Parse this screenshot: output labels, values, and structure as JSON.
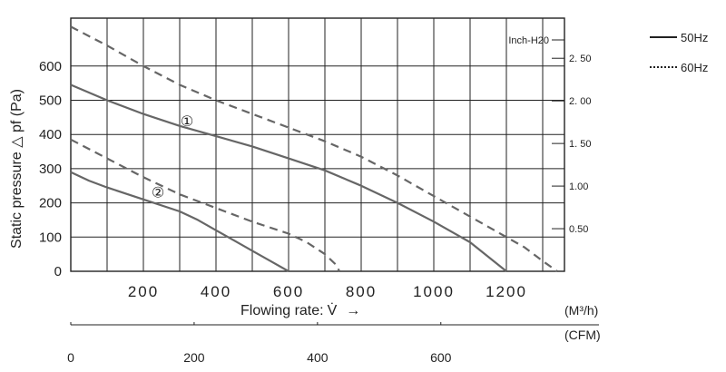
{
  "chart_data": {
    "type": "line",
    "ylabel": "Static pressure △ pf (Pa)",
    "xlabel": "Flowing rate:",
    "xlabel_symbol": "V̇",
    "xlabel_arrow": "→",
    "x_unit": "(M³/h)",
    "x_unit_sup": "3",
    "xlim": [
      0,
      1360
    ],
    "ylim": [
      0,
      740
    ],
    "x_ticks": [
      200,
      400,
      600,
      800,
      1000,
      1200
    ],
    "x_tick_labels": [
      "200",
      "400",
      "600",
      "800",
      "1000",
      "1200"
    ],
    "y_ticks": [
      0,
      100,
      200,
      300,
      400,
      500,
      600
    ],
    "y_tick_labels": [
      "0",
      "100",
      "200",
      "300",
      "400",
      "500",
      "600"
    ],
    "grid": true,
    "secondary_axis": {
      "title": "Inch-H20",
      "ticks": [
        2.5,
        2.0,
        1.5,
        1.0,
        0.5
      ],
      "tick_labels": [
        "2. 50",
        "2. 00",
        "1. 50",
        "1.00",
        "0.50"
      ]
    },
    "cfm_axis": {
      "unit": "(CFM)",
      "ticks": [
        0,
        200,
        400,
        600
      ],
      "tick_labels": [
        "0",
        "200",
        "400",
        "600"
      ]
    },
    "legend": {
      "placement": "outside-top-right",
      "entries": [
        {
          "label": "50Hz",
          "style": "solid"
        },
        {
          "label": "60Hz",
          "style": "dotted"
        }
      ]
    },
    "curve_markers": [
      {
        "label": "①",
        "x": 320,
        "y": 440
      },
      {
        "label": "②",
        "x": 240,
        "y": 232
      }
    ],
    "series": [
      {
        "style": "solid",
        "curve": "1",
        "points": [
          [
            0,
            545
          ],
          [
            100,
            500
          ],
          [
            200,
            460
          ],
          [
            300,
            425
          ],
          [
            400,
            395
          ],
          [
            500,
            365
          ],
          [
            600,
            330
          ],
          [
            700,
            295
          ],
          [
            800,
            250
          ],
          [
            900,
            200
          ],
          [
            1000,
            145
          ],
          [
            1100,
            85
          ],
          [
            1200,
            0
          ]
        ]
      },
      {
        "style": "dashed",
        "curve": "1",
        "points": [
          [
            0,
            715
          ],
          [
            100,
            660
          ],
          [
            200,
            600
          ],
          [
            300,
            545
          ],
          [
            400,
            500
          ],
          [
            500,
            460
          ],
          [
            600,
            420
          ],
          [
            700,
            380
          ],
          [
            800,
            335
          ],
          [
            900,
            280
          ],
          [
            1000,
            220
          ],
          [
            1100,
            160
          ],
          [
            1200,
            100
          ],
          [
            1250,
            70
          ],
          [
            1300,
            30
          ],
          [
            1340,
            0
          ]
        ]
      },
      {
        "style": "solid",
        "curve": "2",
        "points": [
          [
            0,
            290
          ],
          [
            50,
            265
          ],
          [
            100,
            245
          ],
          [
            200,
            210
          ],
          [
            300,
            175
          ],
          [
            350,
            150
          ],
          [
            400,
            120
          ],
          [
            450,
            90
          ],
          [
            500,
            60
          ],
          [
            550,
            30
          ],
          [
            600,
            0
          ]
        ]
      },
      {
        "style": "dashed",
        "curve": "2",
        "points": [
          [
            0,
            385
          ],
          [
            100,
            330
          ],
          [
            200,
            275
          ],
          [
            300,
            225
          ],
          [
            400,
            185
          ],
          [
            500,
            145
          ],
          [
            600,
            110
          ],
          [
            650,
            85
          ],
          [
            700,
            50
          ],
          [
            730,
            20
          ],
          [
            740,
            0
          ]
        ]
      }
    ]
  },
  "colors": {
    "curve": "#666666",
    "grid": "#222222",
    "text": "#222222"
  }
}
